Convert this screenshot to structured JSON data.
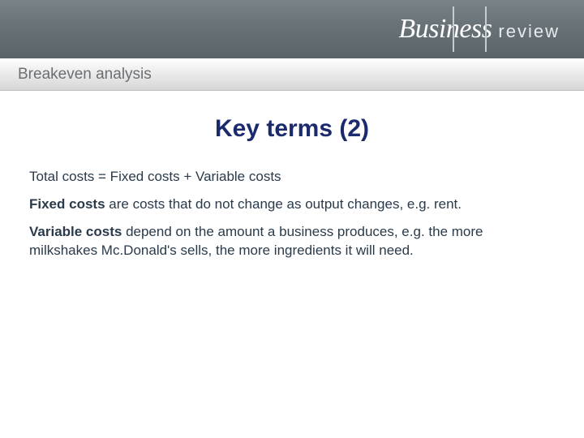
{
  "banner": {
    "logo_business": "Business",
    "logo_review": "review",
    "bg_gradient_top": "#7a8488",
    "bg_gradient_bottom": "#5a6468",
    "divider_positions": [
      560,
      600
    ]
  },
  "subbanner": {
    "breadcrumb": "Breakeven analysis",
    "text_color": "#6b6f72",
    "bg_top": "#ffffff",
    "bg_bottom": "#d6d6d6"
  },
  "content": {
    "heading": "Key terms (2)",
    "heading_color": "#1a2a6c",
    "body_color": "#2a3a4a",
    "equation": "Total costs = Fixed costs + Variable costs",
    "para1_bold": "Fixed costs",
    "para1_rest": " are costs that do not change as output changes, e.g. rent.",
    "para2_bold": "Variable costs",
    "para2_rest": " depend on the amount a business produces, e.g. the more milkshakes Mc.Donald's sells, the more ingredients it will need."
  },
  "typography": {
    "heading_fontsize": 30,
    "body_fontsize": 17,
    "breadcrumb_fontsize": 19
  }
}
